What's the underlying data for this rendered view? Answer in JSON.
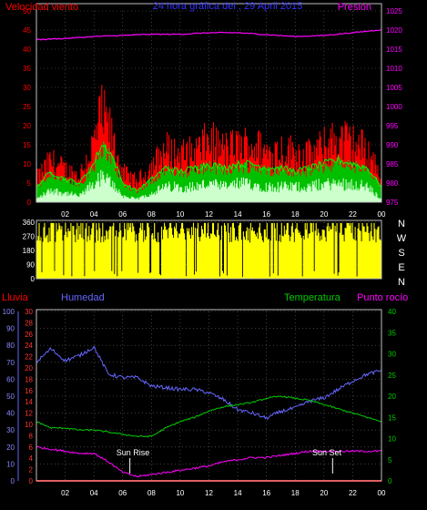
{
  "header": {
    "left_label": "Velocidad viento",
    "title": "24 hora gráfica del , 29 April 2015",
    "right_label": "Presión"
  },
  "compass": [
    "N",
    "W",
    "S",
    "E",
    "N"
  ],
  "lower_header": {
    "rain": "Lluvia",
    "humidity": "Humedad",
    "temperature": "Temperatura",
    "dewpoint": "Punto rocío"
  },
  "annotations": {
    "sunrise": "Sun Rise",
    "sunset": "Sun Set"
  },
  "colors": {
    "wind_gust": "#ff0000",
    "wind_avg": "#00c000",
    "wind_low": "#ccffcc",
    "pressure": "#ff00ff",
    "direction": "#ffff00",
    "humidity": "#6666ff",
    "temperature": "#00cc00",
    "dewpoint": "#ff00ff",
    "rain": "#ff0000",
    "grid": "#666666",
    "frame": "#c0c0c0"
  },
  "chart_data": [
    {
      "type": "line",
      "name": "wind-pressure",
      "x_ticks": [
        "02",
        "04",
        "06",
        "08",
        "10",
        "12",
        "14",
        "16",
        "18",
        "20",
        "22",
        "00"
      ],
      "y_left": {
        "ticks": [
          0,
          5,
          10,
          15,
          20,
          25,
          30,
          35,
          40,
          45,
          50
        ],
        "lim": [
          0,
          50
        ]
      },
      "y_right": {
        "ticks": [
          975,
          980,
          985,
          990,
          995,
          1000,
          1005,
          1010,
          1015,
          1020,
          1025
        ],
        "lim": [
          975,
          1025
        ]
      },
      "pressure_points": [
        [
          0,
          1017.5
        ],
        [
          2,
          1017.8
        ],
        [
          4,
          1018.3
        ],
        [
          6,
          1018.6
        ],
        [
          8,
          1018.9
        ],
        [
          10,
          1018.9
        ],
        [
          12,
          1019.3
        ],
        [
          14,
          1019.3
        ],
        [
          16,
          1018.8
        ],
        [
          18,
          1018.3
        ],
        [
          20,
          1018.6
        ],
        [
          22,
          1019.3
        ],
        [
          24,
          1020.1
        ]
      ],
      "gust_envelope": [
        [
          0,
          8
        ],
        [
          1,
          14
        ],
        [
          2,
          11
        ],
        [
          3,
          9
        ],
        [
          4,
          20
        ],
        [
          4.5,
          30
        ],
        [
          5,
          26
        ],
        [
          5.5,
          18
        ],
        [
          6,
          10
        ],
        [
          7,
          7
        ],
        [
          8,
          12
        ],
        [
          9,
          18
        ],
        [
          10,
          16
        ],
        [
          11,
          17
        ],
        [
          12,
          21
        ],
        [
          13,
          18
        ],
        [
          14,
          19
        ],
        [
          15,
          20
        ],
        [
          16,
          17
        ],
        [
          17,
          18
        ],
        [
          18,
          17
        ],
        [
          19,
          16
        ],
        [
          20,
          19
        ],
        [
          21,
          22
        ],
        [
          22,
          20
        ],
        [
          23,
          18
        ],
        [
          24,
          9
        ]
      ],
      "avg_envelope": [
        [
          0,
          4
        ],
        [
          1,
          8
        ],
        [
          2,
          6
        ],
        [
          3,
          5
        ],
        [
          4,
          10
        ],
        [
          4.5,
          15
        ],
        [
          5,
          14
        ],
        [
          5.5,
          10
        ],
        [
          6,
          5
        ],
        [
          7,
          3
        ],
        [
          8,
          6
        ],
        [
          9,
          9
        ],
        [
          10,
          8
        ],
        [
          11,
          9
        ],
        [
          12,
          10
        ],
        [
          13,
          9
        ],
        [
          14,
          10
        ],
        [
          15,
          10
        ],
        [
          16,
          9
        ],
        [
          17,
          9
        ],
        [
          18,
          8
        ],
        [
          19,
          9
        ],
        [
          20,
          10
        ],
        [
          21,
          11
        ],
        [
          22,
          10
        ],
        [
          23,
          9
        ],
        [
          24,
          4
        ]
      ],
      "low_envelope": [
        [
          0,
          1
        ],
        [
          1,
          4
        ],
        [
          2,
          3
        ],
        [
          3,
          2
        ],
        [
          4,
          6
        ],
        [
          4.5,
          8
        ],
        [
          5,
          7
        ],
        [
          5.5,
          5
        ],
        [
          6,
          2
        ],
        [
          7,
          1
        ],
        [
          8,
          3
        ],
        [
          9,
          5
        ],
        [
          10,
          5
        ],
        [
          11,
          5
        ],
        [
          12,
          6
        ],
        [
          13,
          5
        ],
        [
          14,
          6
        ],
        [
          15,
          6
        ],
        [
          16,
          5
        ],
        [
          17,
          5
        ],
        [
          18,
          5
        ],
        [
          19,
          5
        ],
        [
          20,
          6
        ],
        [
          21,
          6
        ],
        [
          22,
          6
        ],
        [
          23,
          5
        ],
        [
          24,
          1
        ]
      ]
    },
    {
      "type": "bar",
      "name": "wind-direction",
      "y_ticks": [
        0,
        90,
        180,
        270,
        360
      ],
      "ylim": [
        0,
        360
      ],
      "typical_range_deg": [
        230,
        340
      ]
    },
    {
      "type": "line",
      "name": "humidity-temperature-rain",
      "x_ticks": [
        "02",
        "04",
        "06",
        "08",
        "10",
        "12",
        "14",
        "16",
        "18",
        "20",
        "22",
        "00"
      ],
      "y_humidity": {
        "ticks": [
          0,
          10,
          20,
          30,
          40,
          50,
          60,
          70,
          80,
          90,
          100
        ],
        "lim": [
          0,
          100
        ]
      },
      "y_rain": {
        "ticks": [
          0,
          2,
          4,
          6,
          8,
          10,
          12,
          14,
          16,
          18,
          20,
          22,
          24,
          26,
          28,
          30
        ],
        "lim": [
          0,
          30
        ]
      },
      "y_temperature": {
        "ticks": [
          0,
          5,
          10,
          15,
          20,
          25,
          30,
          35,
          40
        ],
        "lim": [
          0,
          40
        ]
      },
      "series": [
        {
          "key": "humidity",
          "points": [
            [
              0,
              70
            ],
            [
              1,
              78
            ],
            [
              2,
              71
            ],
            [
              3,
              74
            ],
            [
              4,
              79
            ],
            [
              5,
              63
            ],
            [
              6,
              61
            ],
            [
              7,
              61
            ],
            [
              8,
              56
            ],
            [
              9,
              55
            ],
            [
              10,
              54
            ],
            [
              11,
              54
            ],
            [
              12,
              52
            ],
            [
              13,
              48
            ],
            [
              14,
              42
            ],
            [
              15,
              40
            ],
            [
              16,
              37
            ],
            [
              17,
              41
            ],
            [
              18,
              43
            ],
            [
              19,
              47
            ],
            [
              20,
              49
            ],
            [
              21,
              54
            ],
            [
              22,
              59
            ],
            [
              23,
              63
            ],
            [
              24,
              65
            ]
          ]
        },
        {
          "key": "temperature",
          "points": [
            [
              0,
              14
            ],
            [
              1,
              12.5
            ],
            [
              2,
              12.5
            ],
            [
              3,
              12
            ],
            [
              4,
              12
            ],
            [
              5,
              11.5
            ],
            [
              6,
              11
            ],
            [
              7,
              10.5
            ],
            [
              8,
              10.5
            ],
            [
              9,
              12.5
            ],
            [
              10,
              14
            ],
            [
              11,
              15
            ],
            [
              12,
              16.5
            ],
            [
              13,
              17.5
            ],
            [
              14,
              18
            ],
            [
              15,
              18.5
            ],
            [
              16,
              19.5
            ],
            [
              17,
              20
            ],
            [
              18,
              19.5
            ],
            [
              19,
              19
            ],
            [
              20,
              18
            ],
            [
              21,
              17
            ],
            [
              22,
              16
            ],
            [
              23,
              15
            ],
            [
              24,
              14
            ]
          ]
        },
        {
          "key": "dewpoint",
          "points": [
            [
              0,
              8
            ],
            [
              1,
              7.5
            ],
            [
              2,
              7
            ],
            [
              3,
              6.5
            ],
            [
              4,
              6.5
            ],
            [
              5,
              4.5
            ],
            [
              6,
              2
            ],
            [
              7,
              1
            ],
            [
              8,
              1.5
            ],
            [
              9,
              2
            ],
            [
              10,
              2.5
            ],
            [
              11,
              3
            ],
            [
              12,
              3.5
            ],
            [
              13,
              4.5
            ],
            [
              14,
              5
            ],
            [
              15,
              5.5
            ],
            [
              16,
              5.5
            ],
            [
              17,
              6
            ],
            [
              18,
              6.5
            ],
            [
              19,
              7
            ],
            [
              20,
              7
            ],
            [
              21,
              7
            ],
            [
              22,
              7
            ],
            [
              23,
              7
            ],
            [
              24,
              7
            ]
          ]
        },
        {
          "key": "rain",
          "points": [
            [
              0,
              0
            ],
            [
              24,
              0
            ]
          ]
        }
      ],
      "sunrise_hour": 6.5,
      "sunset_hour": 20.6
    }
  ]
}
